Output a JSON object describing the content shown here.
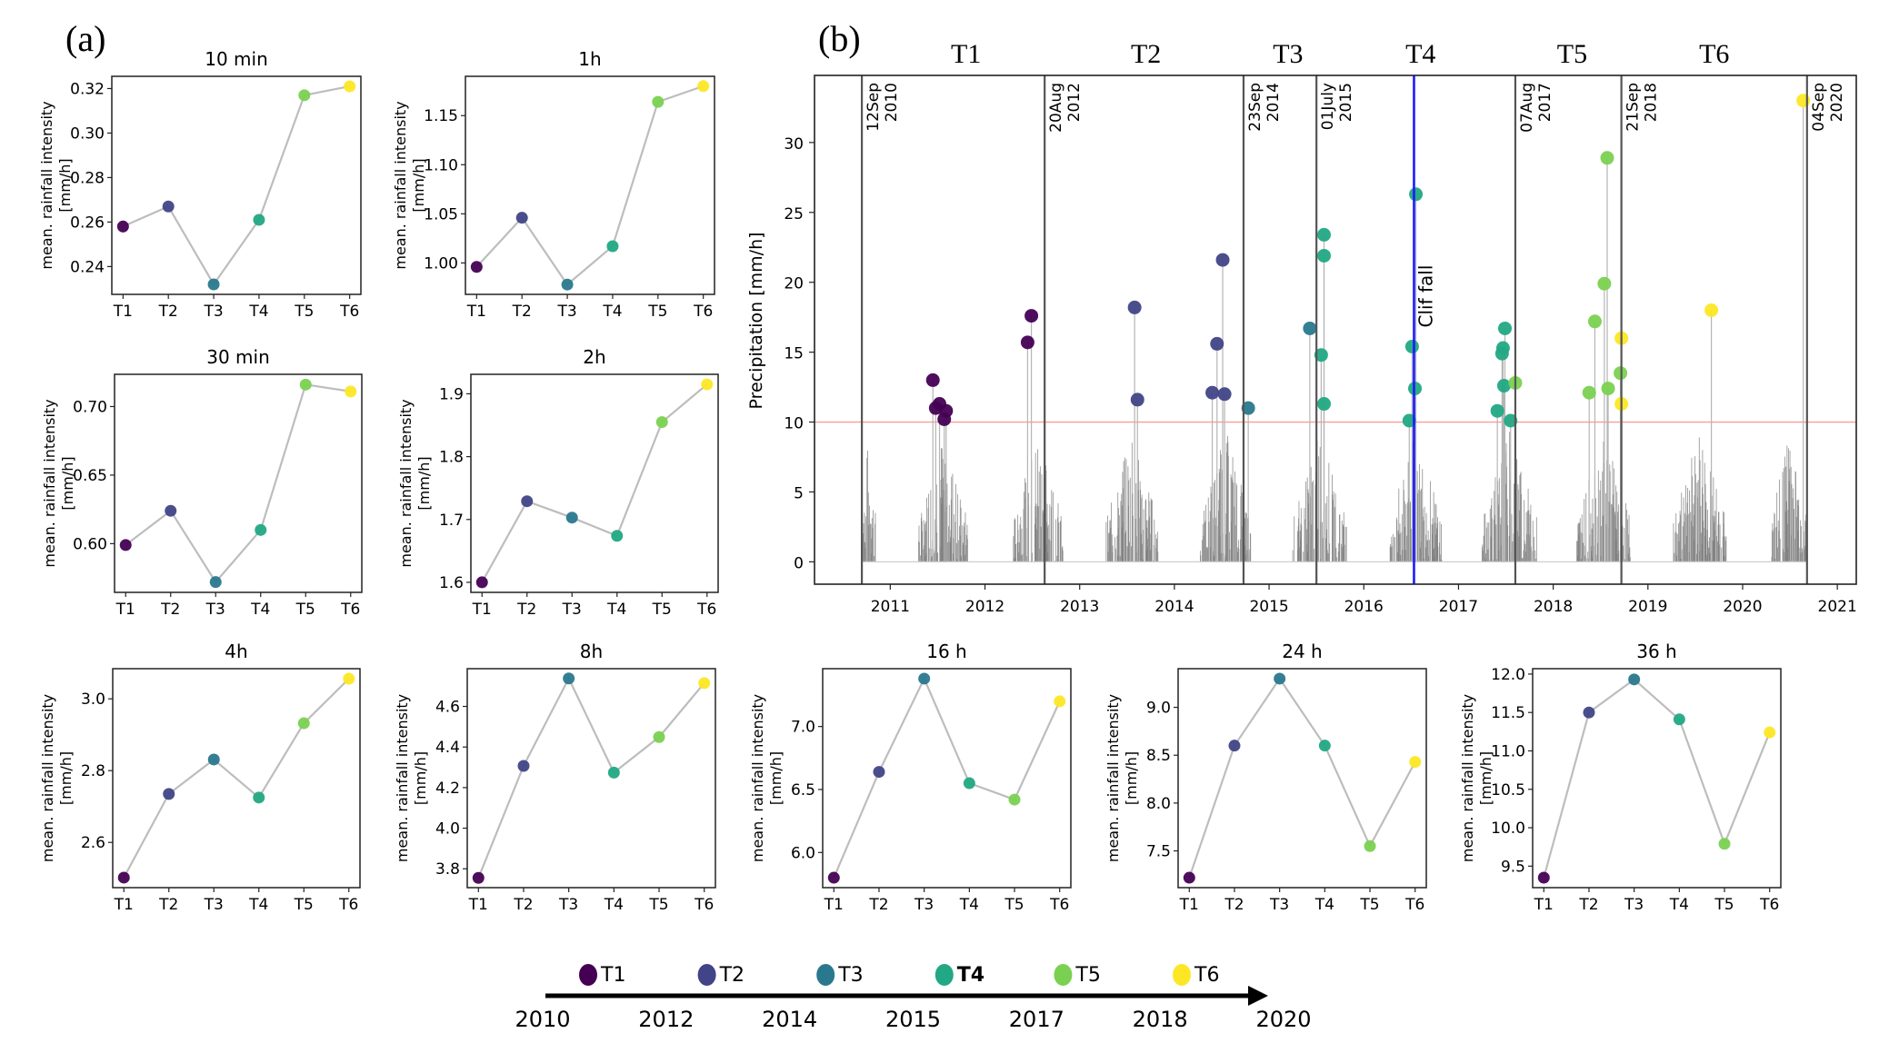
{
  "figure": {
    "panel_a_label": "(a)",
    "panel_b_label": "(b)",
    "period_colors": {
      "T1": "#440154",
      "T2": "#414487",
      "T3": "#2a788e",
      "T4": "#22a884",
      "T5": "#7ad151",
      "T6": "#fde725"
    },
    "line_color": "#bdbdbd",
    "timeline": {
      "years": [
        "2010",
        "2012",
        "2014",
        "2015",
        "2017",
        "2018",
        "2020"
      ],
      "periods": [
        "T1",
        "T2",
        "T3",
        "T4",
        "T5",
        "T6"
      ]
    }
  },
  "chart_data": [
    {
      "type": "line",
      "title": "10 min",
      "categories": [
        "T1",
        "T2",
        "T3",
        "T4",
        "T5",
        "T6"
      ],
      "values": [
        0.258,
        0.267,
        0.232,
        0.261,
        0.317,
        0.321
      ],
      "ylabel": "mean. rainfall intensity\n[mm/h]",
      "yticks": [
        0.24,
        0.26,
        0.28,
        0.3,
        0.32
      ],
      "ytick_labels": [
        "0.24",
        "0.26",
        "0.28",
        "0.30",
        "0.32"
      ],
      "ylim": [
        0.2275,
        0.3255
      ]
    },
    {
      "type": "line",
      "title": "1h",
      "categories": [
        "T1",
        "T2",
        "T3",
        "T4",
        "T5",
        "T6"
      ],
      "values": [
        0.996,
        1.046,
        0.978,
        1.017,
        1.164,
        1.18
      ],
      "ylabel": "mean. rainfall intensity\n[mm/h]",
      "yticks": [
        1.0,
        1.05,
        1.1,
        1.15
      ],
      "ytick_labels": [
        "1.00",
        "1.05",
        "1.10",
        "1.15"
      ],
      "ylim": [
        0.968,
        1.19
      ]
    },
    {
      "type": "line",
      "title": "30 min",
      "categories": [
        "T1",
        "T2",
        "T3",
        "T4",
        "T5",
        "T6"
      ],
      "values": [
        0.599,
        0.624,
        0.572,
        0.61,
        0.716,
        0.711
      ],
      "ylabel": "mean. rainfall intensity\n[mm/h]",
      "yticks": [
        0.6,
        0.65,
        0.7
      ],
      "ytick_labels": [
        "0.60",
        "0.65",
        "0.70"
      ],
      "ylim": [
        0.5645,
        0.7235
      ]
    },
    {
      "type": "line",
      "title": "2h",
      "categories": [
        "T1",
        "T2",
        "T3",
        "T4",
        "T5",
        "T6"
      ],
      "values": [
        1.6,
        1.729,
        1.703,
        1.674,
        1.855,
        1.915
      ],
      "ylabel": "mean. rainfall intensity\n[mm/h]",
      "yticks": [
        1.6,
        1.7,
        1.8,
        1.9
      ],
      "ytick_labels": [
        "1.6",
        "1.7",
        "1.8",
        "1.9"
      ],
      "ylim": [
        1.584,
        1.931
      ]
    },
    {
      "type": "line",
      "title": "4h",
      "categories": [
        "T1",
        "T2",
        "T3",
        "T4",
        "T5",
        "T6"
      ],
      "values": [
        2.502,
        2.735,
        2.831,
        2.725,
        2.932,
        3.056
      ],
      "ylabel": "mean. rainfall intensity\n[mm/h]",
      "yticks": [
        2.6,
        2.8,
        3.0
      ],
      "ytick_labels": [
        "2.6",
        "2.8",
        "3.0"
      ],
      "ylim": [
        2.474,
        3.084
      ]
    },
    {
      "type": "line",
      "title": "8h",
      "categories": [
        "T1",
        "T2",
        "T3",
        "T4",
        "T5",
        "T6"
      ],
      "values": [
        3.755,
        4.307,
        4.738,
        4.274,
        4.449,
        4.715
      ],
      "ylabel": "mean. rainfall intensity\n[mm/h]",
      "yticks": [
        3.8,
        4.0,
        4.2,
        4.4,
        4.6
      ],
      "ytick_labels": [
        "3.8",
        "4.0",
        "4.2",
        "4.4",
        "4.6"
      ],
      "ylim": [
        3.707,
        4.786
      ]
    },
    {
      "type": "line",
      "title": "16 h",
      "categories": [
        "T1",
        "T2",
        "T3",
        "T4",
        "T5",
        "T6"
      ],
      "values": [
        5.8,
        6.64,
        7.38,
        6.55,
        6.42,
        7.2
      ],
      "ylabel": "mean. rainfall intensity\n[mm/h]",
      "yticks": [
        6.0,
        6.5,
        7.0
      ],
      "ytick_labels": [
        "6.0",
        "6.5",
        "7.0"
      ],
      "ylim": [
        5.721,
        7.459
      ]
    },
    {
      "type": "line",
      "title": "24 h",
      "categories": [
        "T1",
        "T2",
        "T3",
        "T4",
        "T5",
        "T6"
      ],
      "values": [
        7.22,
        8.6,
        9.3,
        8.6,
        7.55,
        8.43
      ],
      "ylabel": "mean. rainfall intensity\n[mm/h]",
      "yticks": [
        7.5,
        8.0,
        8.5,
        9.0
      ],
      "ytick_labels": [
        "7.5",
        "8.0",
        "8.5",
        "9.0"
      ],
      "ylim": [
        7.116,
        9.404
      ]
    },
    {
      "type": "line",
      "title": "36 h",
      "categories": [
        "T1",
        "T2",
        "T3",
        "T4",
        "T5",
        "T6"
      ],
      "values": [
        9.35,
        11.5,
        11.93,
        11.41,
        9.79,
        11.24
      ],
      "ylabel": "mean. rainfall intensity\n[mm/h]",
      "yticks": [
        9.5,
        10.0,
        10.5,
        11.0,
        11.5,
        12.0
      ],
      "ytick_labels": [
        "9.5",
        "10.0",
        "10.5",
        "11.0",
        "11.5",
        "12.0"
      ],
      "ylim": [
        9.22,
        12.07
      ]
    },
    {
      "type": "scatter",
      "title": "",
      "ylabel": "Precipitation [mm/h]",
      "xlabel": "",
      "xlim": [
        2010.2,
        2021.2
      ],
      "ylim": [
        -1.6,
        34.8
      ],
      "xticks": [
        2011,
        2012,
        2013,
        2014,
        2015,
        2016,
        2017,
        2018,
        2019,
        2020,
        2021
      ],
      "xtick_labels": [
        "2011",
        "2012",
        "2013",
        "2014",
        "2015",
        "2016",
        "2017",
        "2018",
        "2019",
        "2020",
        "2021"
      ],
      "yticks": [
        0,
        5,
        10,
        15,
        20,
        25,
        30
      ],
      "ytick_labels": [
        "0",
        "5",
        "10",
        "15",
        "20",
        "25",
        "30"
      ],
      "threshold": {
        "value": 10,
        "color": "#ff9a9a"
      },
      "period_labels": [
        {
          "label": "T1",
          "x": 2011.8
        },
        {
          "label": "T2",
          "x": 2013.7
        },
        {
          "label": "T3",
          "x": 2015.2
        },
        {
          "label": "T4",
          "x": 2016.6
        },
        {
          "label": "T5",
          "x": 2018.2
        },
        {
          "label": "T6",
          "x": 2019.7
        }
      ],
      "boundaries": [
        {
          "x": 2010.7,
          "label1": "12Sep",
          "label2": "2010"
        },
        {
          "x": 2012.63,
          "label1": "20Aug",
          "label2": "2012"
        },
        {
          "x": 2014.73,
          "label1": "23Sep",
          "label2": "2014"
        },
        {
          "x": 2015.5,
          "label1": "01July",
          "label2": "2015"
        },
        {
          "x": 2017.6,
          "label1": "07Aug",
          "label2": "2017"
        },
        {
          "x": 2018.72,
          "label1": "21Sep",
          "label2": "2018"
        },
        {
          "x": 2020.68,
          "label1": "04Sep",
          "label2": "2020"
        }
      ],
      "event": {
        "x": 2016.53,
        "label": "Clif fall",
        "color": "#1a1aff"
      },
      "rain_seasons": [
        [
          2010.7,
          2010.85
        ],
        [
          2011.3,
          2011.82
        ],
        [
          2012.3,
          2012.83
        ],
        [
          2013.28,
          2013.83
        ],
        [
          2014.27,
          2014.82
        ],
        [
          2015.25,
          2015.82
        ],
        [
          2016.27,
          2016.83
        ],
        [
          2017.25,
          2017.84
        ],
        [
          2018.25,
          2018.82
        ],
        [
          2019.27,
          2019.83
        ],
        [
          2020.3,
          2020.68
        ]
      ],
      "events": [
        {
          "period": "T1",
          "x": 2011.45,
          "y": 13.0
        },
        {
          "period": "T1",
          "x": 2011.48,
          "y": 11.0
        },
        {
          "period": "T1",
          "x": 2011.52,
          "y": 11.3
        },
        {
          "period": "T1",
          "x": 2011.57,
          "y": 10.2
        },
        {
          "period": "T1",
          "x": 2011.59,
          "y": 10.8
        },
        {
          "period": "T1",
          "x": 2012.45,
          "y": 15.7
        },
        {
          "period": "T1",
          "x": 2012.49,
          "y": 17.6
        },
        {
          "period": "T2",
          "x": 2013.58,
          "y": 18.2
        },
        {
          "period": "T2",
          "x": 2013.61,
          "y": 11.6
        },
        {
          "period": "T2",
          "x": 2014.4,
          "y": 12.1
        },
        {
          "period": "T2",
          "x": 2014.45,
          "y": 15.6
        },
        {
          "period": "T2",
          "x": 2014.51,
          "y": 21.6
        },
        {
          "period": "T2",
          "x": 2014.53,
          "y": 12.0
        },
        {
          "period": "T3",
          "x": 2014.78,
          "y": 11.0
        },
        {
          "period": "T3",
          "x": 2015.43,
          "y": 16.7
        },
        {
          "period": "T4",
          "x": 2015.55,
          "y": 14.8
        },
        {
          "period": "T4",
          "x": 2015.58,
          "y": 23.4
        },
        {
          "period": "T4",
          "x": 2015.58,
          "y": 21.9
        },
        {
          "period": "T4",
          "x": 2015.58,
          "y": 11.3
        },
        {
          "period": "T4",
          "x": 2016.48,
          "y": 10.1
        },
        {
          "period": "T4",
          "x": 2016.51,
          "y": 15.4
        },
        {
          "period": "T4",
          "x": 2016.54,
          "y": 12.4
        },
        {
          "period": "T4",
          "x": 2016.55,
          "y": 26.3
        },
        {
          "period": "T4",
          "x": 2017.41,
          "y": 10.8
        },
        {
          "period": "T4",
          "x": 2017.46,
          "y": 14.9
        },
        {
          "period": "T4",
          "x": 2017.47,
          "y": 15.3
        },
        {
          "period": "T4",
          "x": 2017.49,
          "y": 16.7
        },
        {
          "period": "T4",
          "x": 2017.48,
          "y": 12.6
        },
        {
          "period": "T4",
          "x": 2017.55,
          "y": 10.1
        },
        {
          "period": "T5",
          "x": 2017.6,
          "y": 12.8
        },
        {
          "period": "T5",
          "x": 2018.38,
          "y": 12.1
        },
        {
          "period": "T5",
          "x": 2018.44,
          "y": 17.2
        },
        {
          "period": "T5",
          "x": 2018.54,
          "y": 19.9
        },
        {
          "period": "T5",
          "x": 2018.58,
          "y": 12.4
        },
        {
          "period": "T5",
          "x": 2018.57,
          "y": 28.9
        },
        {
          "period": "T5",
          "x": 2018.71,
          "y": 13.5
        },
        {
          "period": "T6",
          "x": 2018.72,
          "y": 16.0
        },
        {
          "period": "T6",
          "x": 2018.72,
          "y": 11.3
        },
        {
          "period": "T6",
          "x": 2019.67,
          "y": 18.0
        },
        {
          "period": "T6",
          "x": 2020.64,
          "y": 33.0
        }
      ]
    }
  ]
}
